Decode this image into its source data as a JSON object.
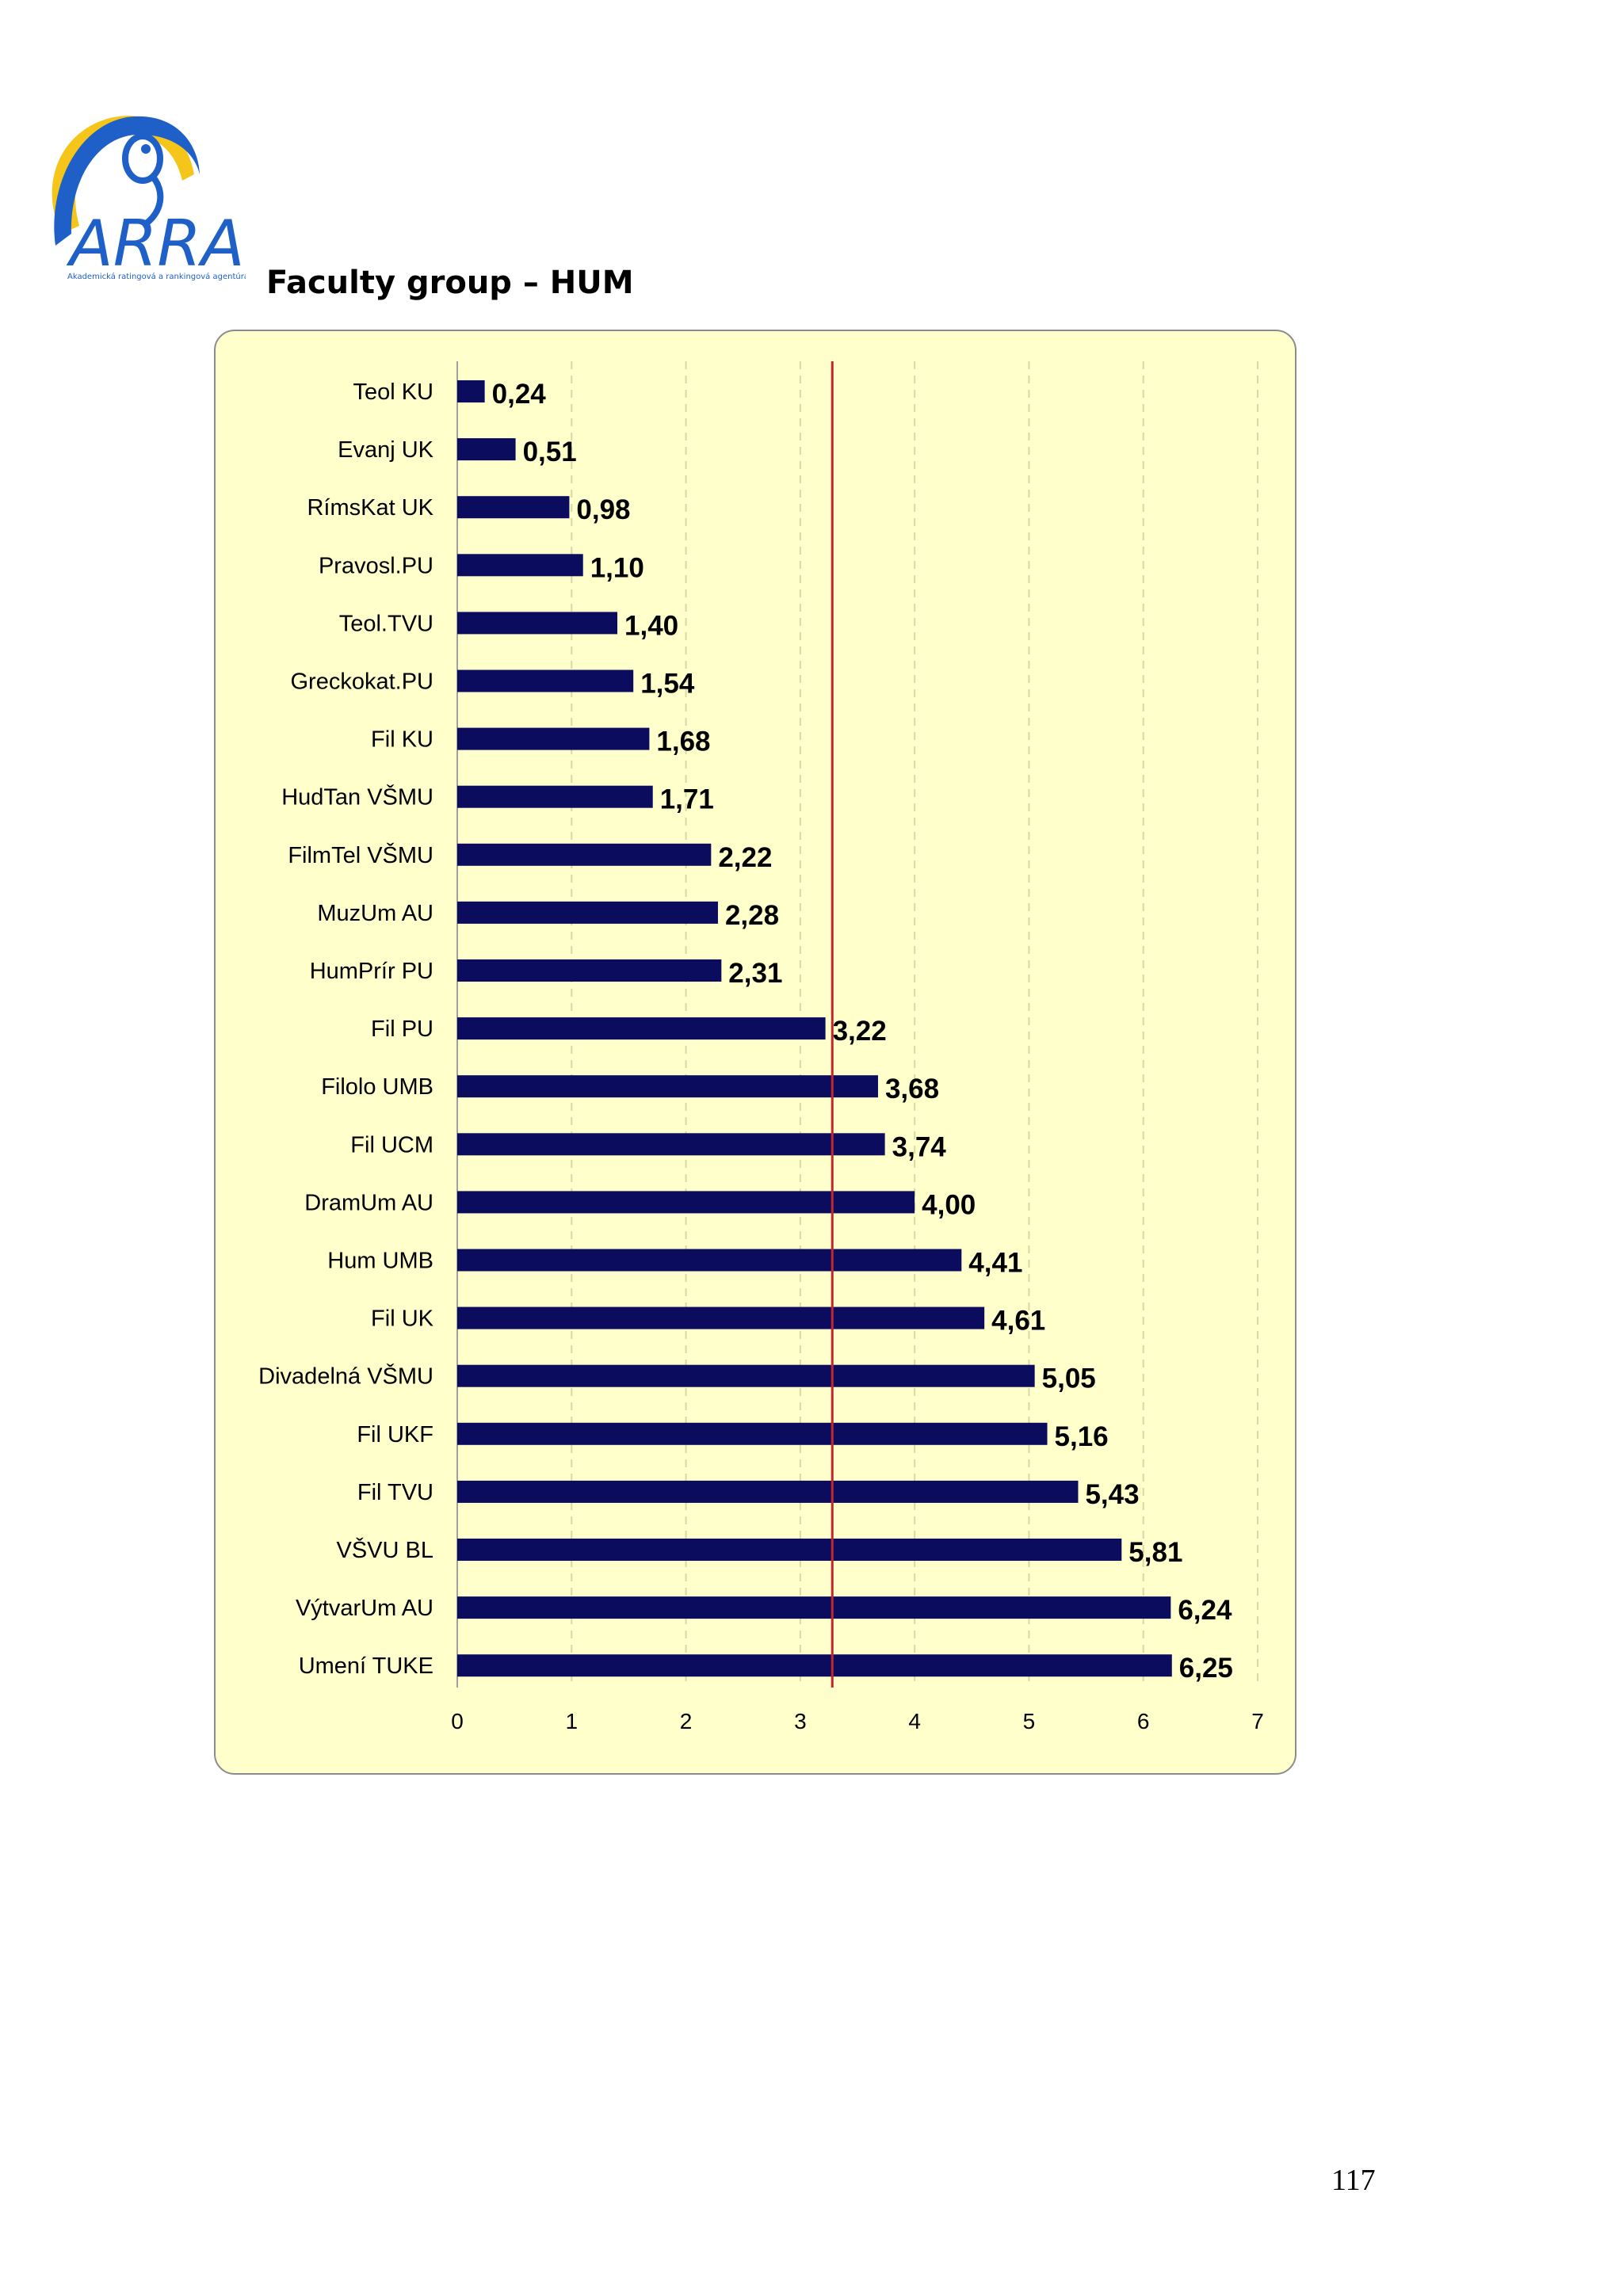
{
  "logo": {
    "brand": "ARRA",
    "tagline": "Akademická ratingová a rankingová agentúra",
    "colors": {
      "blue": "#1f5fc8",
      "yellow": "#f6c51a"
    }
  },
  "heading": "Faculty group – HUM",
  "page_number": "117",
  "chart_data": {
    "type": "bar",
    "orientation": "horizontal",
    "title": "",
    "xlabel": "",
    "ylabel": "",
    "categories": [
      "Teol KU",
      "Evanj UK",
      "RímsKat UK",
      "Pravosl.PU",
      "Teol.TVU",
      "Greckokat.PU",
      "Fil KU",
      "HudTan VŠMU",
      "FilmTel VŠMU",
      "MuzUm AU",
      "HumPrír PU",
      "Fil PU",
      "Filolo UMB",
      "Fil UCM",
      "DramUm AU",
      "Hum UMB",
      "Fil UK",
      "Divadelná VŠMU",
      "Fil UKF",
      "Fil TVU",
      "VŠVU BL",
      "VýtvarUm AU",
      "Umení TUKE"
    ],
    "values": [
      0.24,
      0.51,
      0.98,
      1.1,
      1.4,
      1.54,
      1.68,
      1.71,
      2.22,
      2.28,
      2.31,
      3.22,
      3.68,
      3.74,
      4.0,
      4.41,
      4.61,
      5.05,
      5.16,
      5.43,
      5.81,
      6.24,
      6.25
    ],
    "value_labels": [
      "0,24",
      "0,51",
      "0,98",
      "1,10",
      "1,40",
      "1,54",
      "1,68",
      "1,71",
      "2,22",
      "2,28",
      "2,31",
      "3,22",
      "3,68",
      "3,74",
      "4,00",
      "4,41",
      "4,61",
      "5,05",
      "5,16",
      "5,43",
      "5,81",
      "6,24",
      "6,25"
    ],
    "xlim": [
      0,
      7
    ],
    "xticks": [
      0,
      1,
      2,
      3,
      4,
      5,
      6,
      7
    ],
    "xtick_labels": [
      "0",
      "1",
      "2",
      "3",
      "4",
      "5",
      "6",
      "7"
    ],
    "reference_line": 3.28,
    "grid": "vertical dashed",
    "legend": "none",
    "colors": {
      "bar": "#0c0c5e",
      "reference_line": "#c0282d",
      "background": "#ffffcc",
      "grid": "#d8d8a8"
    }
  }
}
